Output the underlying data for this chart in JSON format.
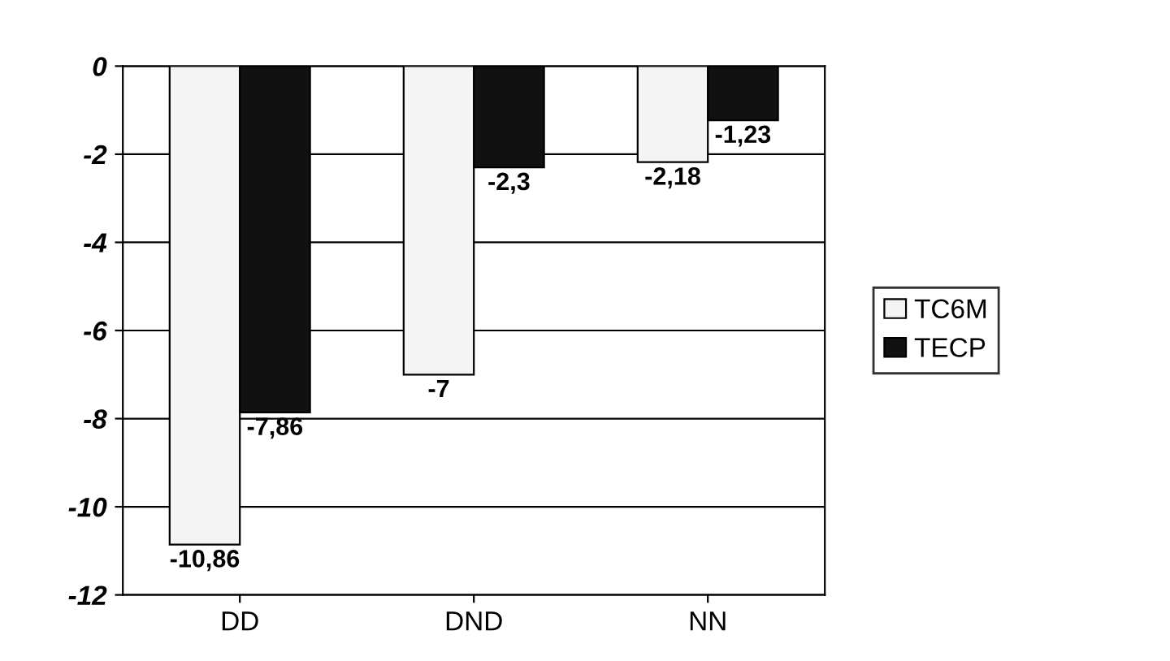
{
  "chart_data": {
    "type": "bar",
    "categories": [
      "DD",
      "DND",
      "NN"
    ],
    "series": [
      {
        "name": "TC6M",
        "color": "#f4f4f4",
        "values": [
          -10.86,
          -7,
          -2.18
        ],
        "value_labels": [
          "-10,86",
          "-7",
          "-2,18"
        ]
      },
      {
        "name": "TECP",
        "color": "#111111",
        "values": [
          -7.86,
          -2.3,
          -1.23
        ],
        "value_labels": [
          "-7,86",
          "-2,3",
          "-1,23"
        ]
      }
    ],
    "ylim": [
      -12,
      0
    ],
    "yticks": [
      0,
      -2,
      -4,
      -6,
      -8,
      -10,
      -12
    ],
    "grid": "y",
    "legend": "right"
  }
}
